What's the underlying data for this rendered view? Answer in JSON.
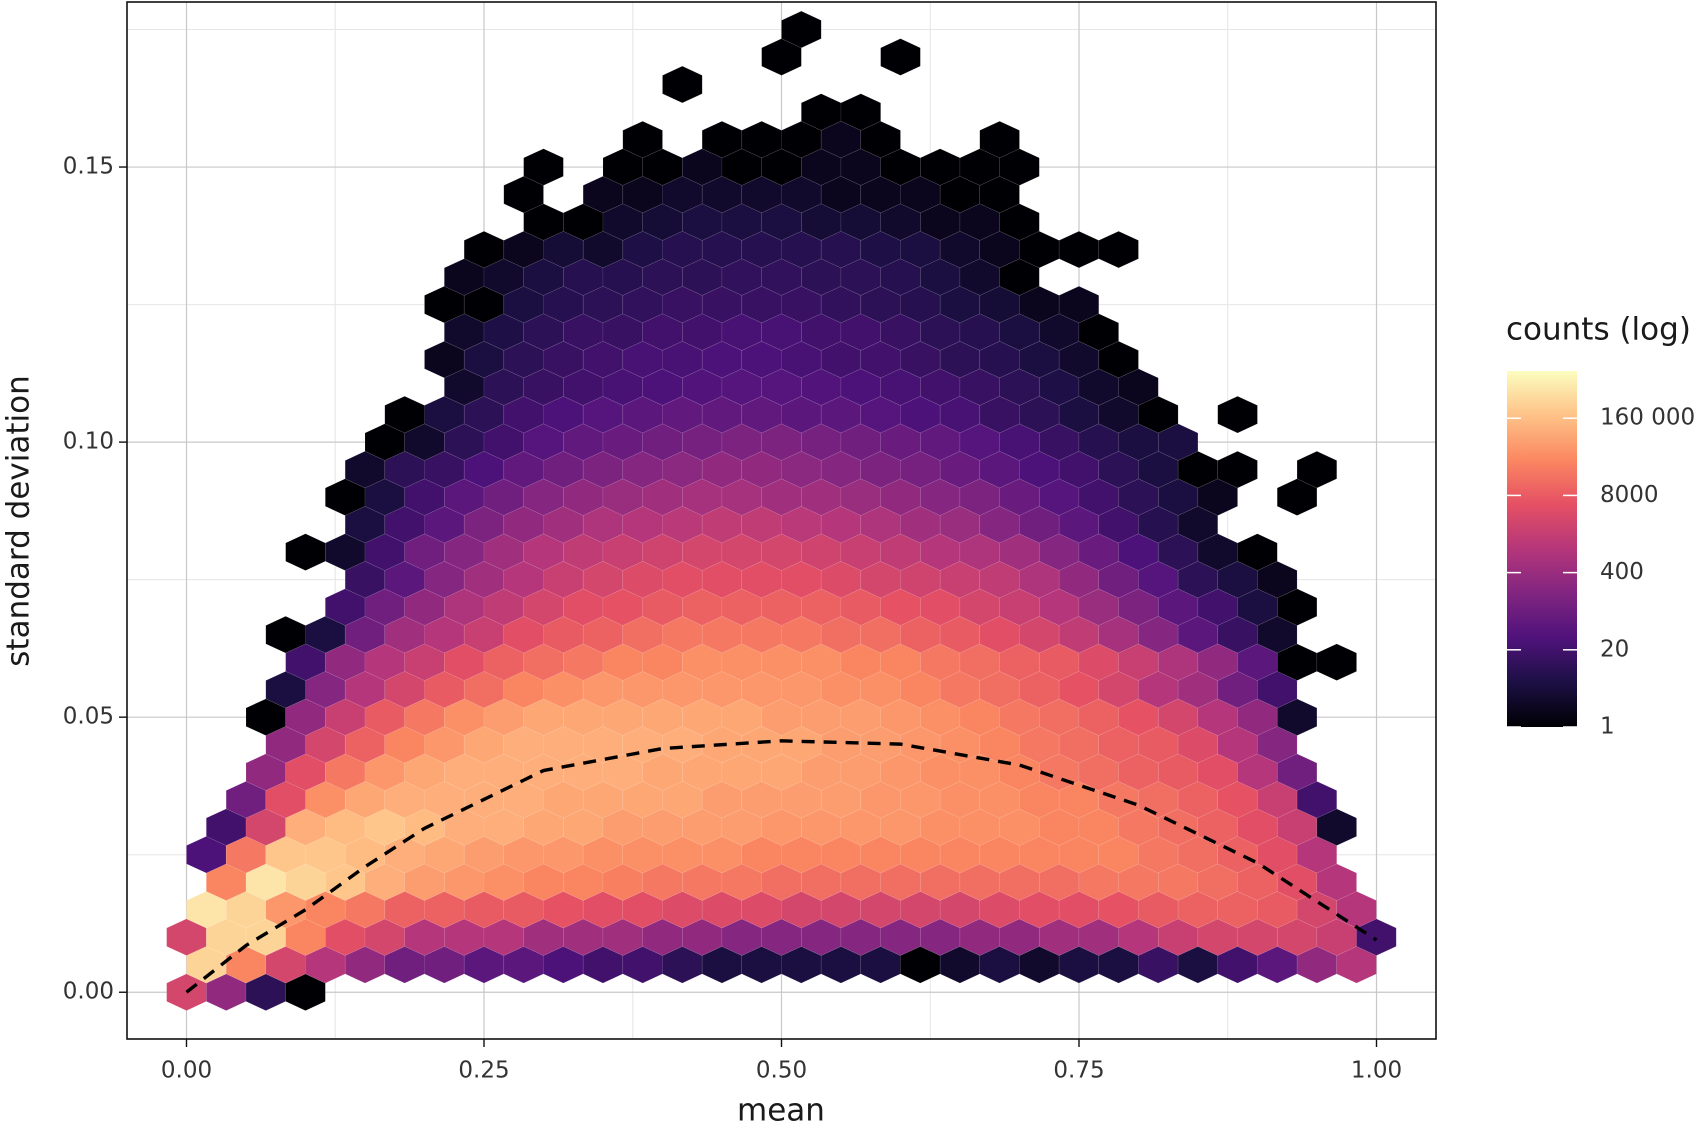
{
  "chart_data": {
    "type": "hexbin",
    "x_label": "mean",
    "y_label": "standard deviation",
    "legend_title": "counts (log)",
    "colormap": "magma",
    "color_scale": "log",
    "clim": [
      1,
      1000000
    ],
    "cticks": [
      1,
      20,
      400,
      8000,
      {
        "value": 160000,
        "label": "160 000"
      }
    ],
    "xlim": [
      -0.05,
      1.05
    ],
    "ylim": [
      -0.0085,
      0.18
    ],
    "xticks": [
      {
        "value": 0,
        "label": "0.00"
      },
      {
        "value": 0.25,
        "label": "0.25"
      },
      {
        "value": 0.5,
        "label": "0.50"
      },
      {
        "value": 0.75,
        "label": "0.75"
      },
      {
        "value": 1,
        "label": "1.00"
      }
    ],
    "yticks": [
      {
        "value": 0,
        "label": "0.00"
      },
      {
        "value": 0.05,
        "label": "0.05"
      },
      {
        "value": 0.1,
        "label": "0.10"
      },
      {
        "value": 0.15,
        "label": "0.15"
      }
    ],
    "x_minor_grid": [
      0.125,
      0.375,
      0.625,
      0.875
    ],
    "y_minor_grid": [
      0.025,
      0.075,
      0.125,
      0.175
    ],
    "grid": true,
    "xbinwidth": 0.03333,
    "ybinwidth": 0.005,
    "rows": [
      {
        "y": 0,
        "x_start": 0,
        "counts": [
          3000,
          300,
          10,
          1
        ]
      },
      {
        "y": 0.005,
        "x_start": 0.01667,
        "counts": [
          300000,
          30000,
          3000,
          1000,
          300,
          100,
          100,
          50,
          50,
          30,
          20,
          20,
          10,
          5,
          5,
          5,
          5,
          5,
          1,
          3,
          5,
          3,
          5,
          5,
          15,
          5,
          20,
          50,
          300,
          1000
        ]
      },
      {
        "y": 0.01,
        "x_start": 0,
        "counts": [
          3000,
          300000,
          300000,
          30000,
          5000,
          3000,
          1000,
          1000,
          1000,
          500,
          500,
          500,
          300,
          300,
          200,
          200,
          200,
          200,
          200,
          200,
          300,
          300,
          500,
          500,
          1000,
          2000,
          3000,
          3000,
          3000,
          2000,
          20
        ]
      },
      {
        "y": 0.015,
        "x_start": 0.01667,
        "counts": [
          500000,
          300000,
          50000,
          30000,
          20000,
          10000,
          10000,
          8000,
          8000,
          6000,
          5000,
          5000,
          4000,
          4000,
          4000,
          3000,
          3000,
          3000,
          3000,
          3000,
          4000,
          5000,
          5000,
          6000,
          8000,
          10000,
          10000,
          8000,
          3000,
          1000
        ]
      },
      {
        "y": 0.02,
        "x_start": 0.03333,
        "counts": [
          30000,
          500000,
          300000,
          200000,
          100000,
          60000,
          50000,
          40000,
          30000,
          30000,
          25000,
          20000,
          20000,
          20000,
          15000,
          15000,
          15000,
          15000,
          15000,
          15000,
          15000,
          15000,
          20000,
          20000,
          20000,
          15000,
          10000,
          5000,
          1000
        ]
      },
      {
        "y": 0.025,
        "x_start": 0.01667,
        "counts": [
          30,
          20000,
          200000,
          200000,
          150000,
          100000,
          80000,
          60000,
          50000,
          50000,
          40000,
          40000,
          40000,
          40000,
          30000,
          30000,
          30000,
          30000,
          30000,
          30000,
          30000,
          30000,
          30000,
          30000,
          20000,
          15000,
          10000,
          5000,
          1000
        ]
      },
      {
        "y": 0.03,
        "x_start": 0.03333,
        "counts": [
          20,
          3000,
          100000,
          150000,
          200000,
          150000,
          100000,
          100000,
          80000,
          80000,
          60000,
          60000,
          60000,
          60000,
          50000,
          50000,
          50000,
          50000,
          40000,
          40000,
          40000,
          30000,
          30000,
          20000,
          15000,
          10000,
          5000,
          2000,
          3
        ]
      },
      {
        "y": 0.035,
        "x_start": 0.05,
        "counts": [
          100,
          5000,
          40000,
          80000,
          100000,
          100000,
          100000,
          100000,
          80000,
          80000,
          80000,
          80000,
          60000,
          60000,
          60000,
          60000,
          50000,
          50000,
          40000,
          40000,
          30000,
          30000,
          20000,
          15000,
          10000,
          6000,
          2000,
          20
        ]
      },
      {
        "y": 0.04,
        "x_start": 0.06667,
        "counts": [
          300,
          5000,
          20000,
          50000,
          80000,
          100000,
          100000,
          100000,
          100000,
          100000,
          80000,
          80000,
          80000,
          80000,
          60000,
          60000,
          50000,
          40000,
          40000,
          30000,
          20000,
          15000,
          10000,
          8000,
          5000,
          1000,
          100
        ]
      },
      {
        "y": 0.045,
        "x_start": 0.08333,
        "counts": [
          300,
          3000,
          10000,
          30000,
          50000,
          80000,
          100000,
          100000,
          100000,
          100000,
          100000,
          80000,
          80000,
          80000,
          60000,
          60000,
          50000,
          40000,
          30000,
          20000,
          15000,
          10000,
          8000,
          4000,
          1000,
          200
        ]
      },
      {
        "y": 0.05,
        "x_start": 0.06667,
        "counts": [
          1,
          300,
          2000,
          8000,
          20000,
          40000,
          60000,
          80000,
          80000,
          80000,
          80000,
          80000,
          80000,
          60000,
          60000,
          60000,
          50000,
          40000,
          30000,
          20000,
          15000,
          10000,
          6000,
          3000,
          1000,
          300,
          3
        ]
      },
      {
        "y": 0.055,
        "x_start": 0.08333,
        "counts": [
          5,
          200,
          1000,
          3000,
          8000,
          15000,
          30000,
          40000,
          50000,
          50000,
          50000,
          50000,
          50000,
          50000,
          40000,
          40000,
          30000,
          20000,
          15000,
          10000,
          6000,
          3000,
          1000,
          500,
          100,
          20
        ]
      },
      {
        "y": 0.06,
        "x_start": 0.1,
        "counts": [
          20,
          300,
          1000,
          2000,
          5000,
          10000,
          15000,
          20000,
          30000,
          30000,
          40000,
          40000,
          40000,
          40000,
          30000,
          30000,
          20000,
          15000,
          10000,
          8000,
          4000,
          2000,
          800,
          300,
          50,
          1,
          1
        ]
      },
      {
        "y": 0.065,
        "x_start": 0.08333,
        "counts": [
          1,
          5,
          100,
          500,
          1000,
          2000,
          5000,
          8000,
          10000,
          15000,
          20000,
          20000,
          20000,
          20000,
          15000,
          15000,
          10000,
          8000,
          5000,
          3000,
          1500,
          600,
          200,
          50,
          15,
          3
        ]
      },
      {
        "y": 0.07,
        "x_start": 0.13333,
        "counts": [
          20,
          100,
          300,
          800,
          1500,
          3000,
          5000,
          6000,
          8000,
          10000,
          10000,
          10000,
          10000,
          8000,
          6000,
          5000,
          3000,
          2000,
          1000,
          400,
          150,
          50,
          20,
          5,
          1
        ]
      },
      {
        "y": 0.075,
        "x_start": 0.15,
        "counts": [
          15,
          50,
          200,
          500,
          1000,
          2000,
          3000,
          4000,
          5000,
          5000,
          5000,
          5000,
          4000,
          3000,
          2500,
          2000,
          1500,
          800,
          300,
          100,
          40,
          10,
          5,
          2
        ]
      },
      {
        "y": 0.08,
        "x_start": 0.1,
        "counts": [
          1,
          3,
          20,
          100,
          200,
          500,
          1000,
          1500,
          2000,
          2500,
          3000,
          3000,
          3000,
          2500,
          2000,
          1500,
          1000,
          800,
          500,
          200,
          80,
          30,
          10,
          3,
          1
        ]
      },
      {
        "y": 0.085,
        "x_start": 0.15,
        "counts": [
          5,
          20,
          50,
          150,
          300,
          500,
          800,
          1000,
          1200,
          1500,
          1500,
          1200,
          1000,
          800,
          500,
          400,
          200,
          100,
          50,
          20,
          8,
          3
        ]
      },
      {
        "y": 0.09,
        "x_start": 0.13333,
        "counts": [
          1,
          5,
          20,
          50,
          100,
          200,
          300,
          400,
          500,
          600,
          600,
          500,
          500,
          400,
          300,
          200,
          150,
          80,
          40,
          20,
          10,
          5,
          2,
          null,
          1
        ]
      },
      {
        "y": 0.095,
        "x_start": 0.15,
        "counts": [
          3,
          10,
          15,
          30,
          60,
          100,
          150,
          200,
          250,
          300,
          300,
          250,
          200,
          150,
          120,
          80,
          50,
          30,
          20,
          10,
          5,
          1,
          1,
          null,
          1
        ]
      },
      {
        "y": 0.1,
        "x_start": 0.16667,
        "counts": [
          1,
          3,
          10,
          20,
          40,
          60,
          80,
          100,
          120,
          150,
          150,
          120,
          100,
          80,
          60,
          40,
          25,
          15,
          8,
          5,
          5
        ]
      },
      {
        "y": 0.105,
        "x_start": 0.18333,
        "counts": [
          1,
          5,
          10,
          20,
          30,
          40,
          50,
          60,
          60,
          60,
          50,
          50,
          40,
          30,
          25,
          15,
          10,
          5,
          3,
          1,
          null,
          1
        ]
      },
      {
        "y": 0.11,
        "x_start": 0.23333,
        "counts": [
          3,
          10,
          15,
          20,
          25,
          30,
          35,
          40,
          40,
          35,
          30,
          25,
          20,
          15,
          10,
          6,
          3,
          2
        ]
      },
      {
        "y": 0.115,
        "x_start": 0.21667,
        "counts": [
          2,
          5,
          10,
          15,
          20,
          25,
          25,
          30,
          30,
          25,
          20,
          20,
          15,
          10,
          8,
          5,
          3,
          1
        ]
      },
      {
        "y": 0.12,
        "x_start": 0.23333,
        "counts": [
          3,
          6,
          10,
          15,
          15,
          20,
          20,
          25,
          25,
          20,
          20,
          15,
          10,
          8,
          5,
          3,
          1
        ]
      },
      {
        "y": 0.125,
        "x_start": 0.21667,
        "counts": [
          1,
          1,
          5,
          8,
          10,
          12,
          15,
          15,
          15,
          15,
          12,
          10,
          8,
          5,
          4,
          2,
          2
        ]
      },
      {
        "y": 0.13,
        "x_start": 0.23333,
        "counts": [
          2,
          3,
          5,
          8,
          8,
          10,
          10,
          12,
          12,
          10,
          10,
          8,
          5,
          3,
          1
        ]
      },
      {
        "y": 0.135,
        "x_start": 0.25,
        "counts": [
          1,
          2,
          4,
          3,
          6,
          8,
          8,
          8,
          8,
          8,
          6,
          5,
          3,
          2,
          1,
          1,
          1
        ]
      },
      {
        "y": 0.14,
        "x_start": 0.3,
        "counts": [
          1,
          1,
          3,
          4,
          5,
          5,
          5,
          4,
          4,
          3,
          2,
          2,
          1
        ]
      },
      {
        "y": 0.145,
        "x_start": 0.28333,
        "counts": [
          1,
          null,
          2,
          2,
          3,
          3,
          3,
          3,
          2,
          2,
          2,
          1,
          1
        ]
      },
      {
        "y": 0.15,
        "x_start": 0.3,
        "counts": [
          1,
          null,
          1,
          1,
          2,
          1,
          1,
          2,
          2,
          1,
          1,
          1,
          1
        ]
      },
      {
        "y": 0.155,
        "x_start": 0.38333,
        "counts": [
          1,
          null,
          1,
          1,
          1,
          2,
          1,
          null,
          null,
          1
        ]
      },
      {
        "y": 0.16,
        "x_start": 0.53333,
        "counts": [
          1,
          1
        ]
      },
      {
        "y": 0.165,
        "x_start": 0.41667,
        "counts": [
          1
        ]
      },
      {
        "y": 0.17,
        "x_start": 0.5,
        "counts": [
          1,
          null,
          null,
          1
        ]
      },
      {
        "y": 0.175,
        "x_start": 0.51667,
        "counts": [
          1
        ]
      }
    ],
    "trend": {
      "color": "#000000",
      "x": [
        0,
        0.05,
        0.1,
        0.15,
        0.2,
        0.3,
        0.4,
        0.5,
        0.6,
        0.7,
        0.8,
        0.9,
        1.0
      ],
      "y": [
        0,
        0.0085,
        0.015,
        0.0228,
        0.0298,
        0.0403,
        0.0443,
        0.0457,
        0.0451,
        0.0413,
        0.034,
        0.0235,
        0.0095
      ]
    }
  }
}
